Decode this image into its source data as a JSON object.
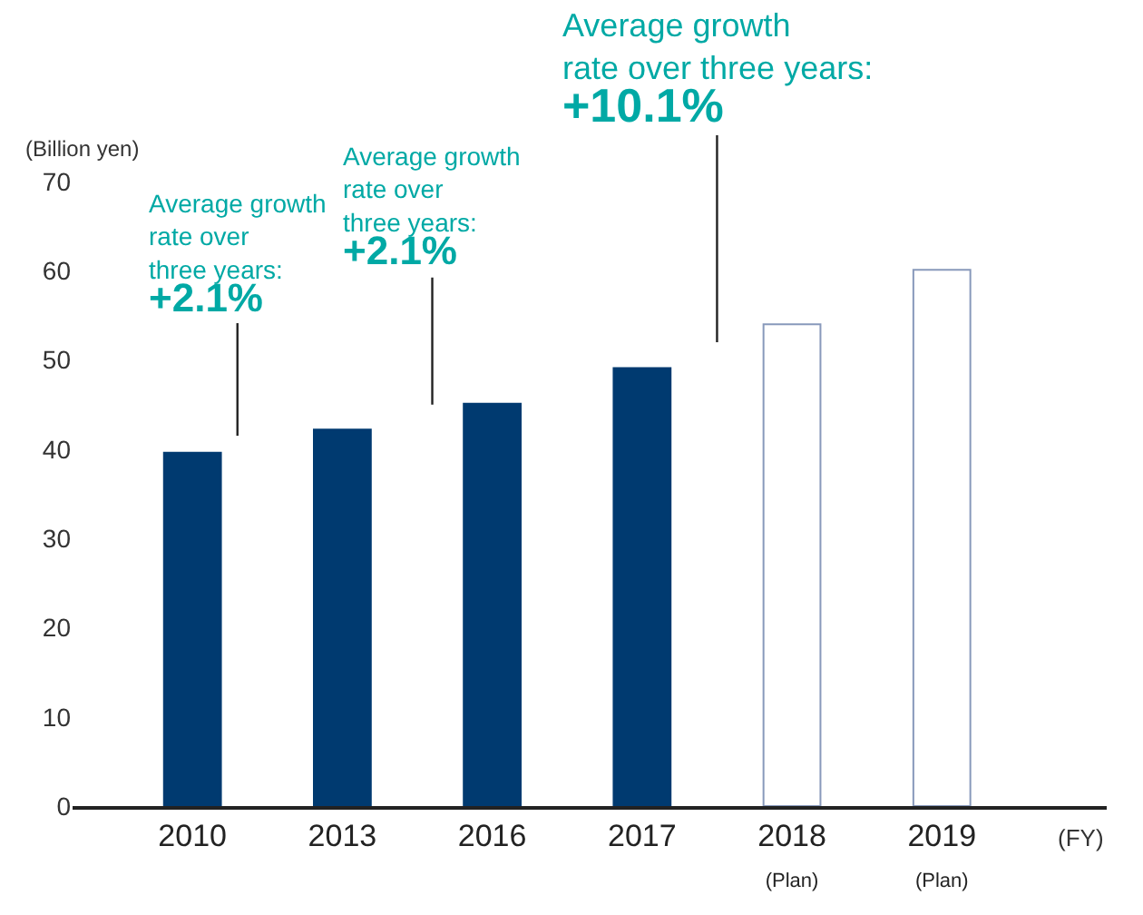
{
  "chart_data": {
    "type": "bar",
    "categories": [
      "2010",
      "2013",
      "2016",
      "2017",
      "2018\n(Plan)",
      "2019\n(Plan)"
    ],
    "values": [
      39.6,
      42.2,
      45.1,
      49.1,
      54.0,
      60.1
    ],
    "colors": [
      "#003a70",
      "#003a70",
      "#003a70",
      "#003a70",
      "#ffffff",
      "#ffffff"
    ],
    "ylabel": "(Billion yen)",
    "xlabel": "(FY)",
    "ylim": [
      0,
      70
    ],
    "yticks": [
      0,
      10,
      20,
      30,
      40,
      50,
      60,
      70
    ],
    "annotations": [
      "Average growth\nrate over\nthree years:\n+2.1%",
      "Average growth\nrate over\nthree years:\n+2.1%",
      "Average growth\nrate over three years:\n+10.1%"
    ],
    "legend": false
  }
}
